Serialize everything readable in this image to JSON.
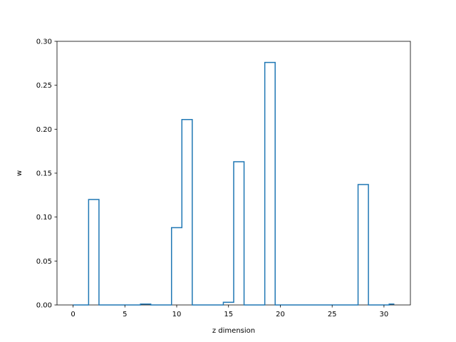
{
  "chart_data": {
    "type": "step",
    "xlabel": "z dimension",
    "ylabel": "w",
    "xlim": [
      -1.55,
      32.55
    ],
    "ylim": [
      0,
      0.3
    ],
    "xticks": [
      0,
      5,
      10,
      15,
      20,
      25,
      30
    ],
    "yticks": [
      0.0,
      0.05,
      0.1,
      0.15,
      0.2,
      0.25,
      0.3
    ],
    "ytick_labels": [
      "0.00",
      "0.05",
      "0.10",
      "0.15",
      "0.20",
      "0.25",
      "0.30"
    ],
    "x": [
      0,
      1,
      2,
      3,
      4,
      5,
      6,
      7,
      8,
      9,
      10,
      11,
      12,
      13,
      14,
      15,
      16,
      17,
      18,
      19,
      20,
      21,
      22,
      23,
      24,
      25,
      26,
      27,
      28,
      29,
      30,
      31
    ],
    "values": [
      0,
      0,
      0.12,
      0,
      0,
      0,
      0,
      0.001,
      0,
      0,
      0.088,
      0.211,
      0,
      0,
      0,
      0.003,
      0.163,
      0,
      0,
      0.276,
      0,
      0,
      0,
      0,
      0,
      0,
      0,
      0,
      0.137,
      0,
      0,
      0.001
    ],
    "color": "#1f77b4",
    "grid": false
  }
}
